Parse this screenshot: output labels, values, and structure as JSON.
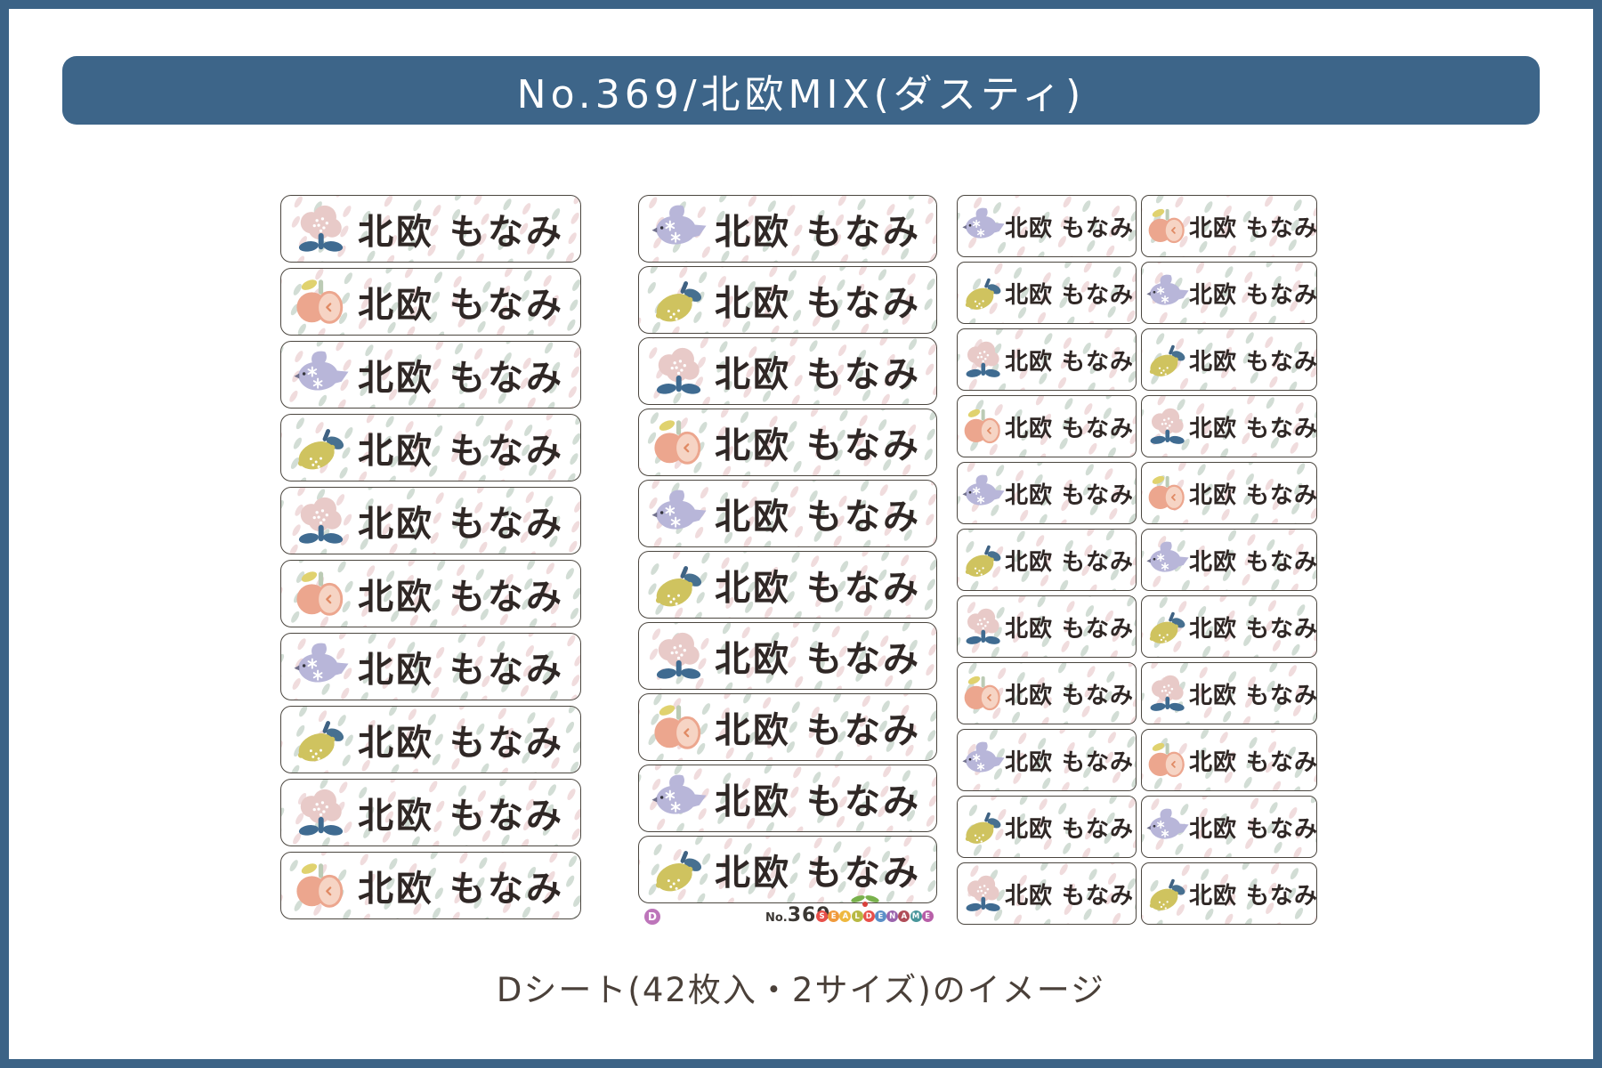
{
  "banner": {
    "title": "No.369/北欧MIX(ダスティ)"
  },
  "sheet": {
    "name_text": "北欧 もなみ",
    "columns": [
      {
        "id": "large-left",
        "size": "large",
        "icons": [
          "flower",
          "apple",
          "bird",
          "lemon",
          "flower",
          "apple",
          "bird",
          "lemon",
          "flower",
          "apple"
        ]
      },
      {
        "id": "large-middle",
        "size": "large",
        "icons": [
          "bird",
          "lemon",
          "flower",
          "apple",
          "bird",
          "lemon",
          "flower",
          "apple",
          "bird",
          "lemon"
        ]
      },
      {
        "id": "small-left",
        "size": "small",
        "icons": [
          "bird",
          "lemon",
          "flower",
          "apple",
          "bird",
          "lemon",
          "flower",
          "apple",
          "bird",
          "lemon",
          "flower"
        ]
      },
      {
        "id": "small-right",
        "size": "small",
        "icons": [
          "apple",
          "bird",
          "lemon",
          "flower",
          "apple",
          "bird",
          "lemon",
          "flower",
          "apple",
          "bird",
          "lemon"
        ]
      }
    ]
  },
  "footer": {
    "sheet_badge": "D",
    "product_no_label": "No.",
    "product_no_value": "369",
    "brand_letters": [
      {
        "letter": "S",
        "color": "#e8504a"
      },
      {
        "letter": "E",
        "color": "#f09a3c"
      },
      {
        "letter": "A",
        "color": "#eeb83e"
      },
      {
        "letter": "L",
        "color": "#b8b944"
      },
      {
        "letter": "D",
        "color": "#e8504a"
      },
      {
        "letter": "E",
        "color": "#5b8fc7"
      },
      {
        "letter": "N",
        "color": "#9a64ad"
      },
      {
        "letter": "A",
        "color": "#b04d58"
      },
      {
        "letter": "M",
        "color": "#49969b"
      },
      {
        "letter": "E",
        "color": "#b75fa8"
      }
    ]
  },
  "caption": "Dシート(42枚入・2サイズ)のイメージ",
  "colors": {
    "frame": "#3c6386",
    "banner": "#3d6589",
    "banner_text": "#ffffff",
    "sticker_border": "#4b463f",
    "sticker_text": "#2f2725",
    "pattern_green": "#cbd8ce",
    "pattern_pink": "#eed6d8",
    "bird": "#b8b6d9",
    "bird_beak": "#70708c",
    "flower_petal": "#e8cac8",
    "flower_stem": "#3f6b91",
    "apple_body": "#eca68e",
    "apple_flesh": "#f6d4c4",
    "apple_leaf": "#e0d26e",
    "apple_stem": "#bccbb5",
    "lemon_body": "#cfc35f",
    "lemon_leaf": "#477090",
    "lemon_stem": "#3f6283",
    "badge_d": "#bd75ba",
    "caption_text": "#4a4039",
    "product_no_text": "#3b3733",
    "cherry_leaf": "#79b14c",
    "cherry_fruit": "#d8413c"
  }
}
